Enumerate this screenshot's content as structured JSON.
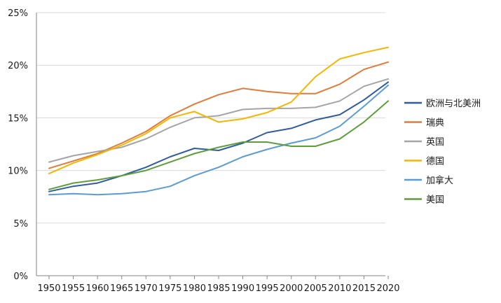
{
  "chart_data": {
    "type": "line",
    "title": "",
    "xlabel": "",
    "ylabel": "",
    "x": [
      1950,
      1955,
      1960,
      1965,
      1970,
      1975,
      1980,
      1985,
      1990,
      1995,
      2000,
      2005,
      2010,
      2015,
      2020
    ],
    "y_ticks": [
      "0%",
      "5%",
      "10%",
      "15%",
      "20%",
      "25%"
    ],
    "ylim": [
      0,
      25
    ],
    "y_unit": "%",
    "grid": true,
    "legend": "right",
    "series": [
      {
        "name": "欧洲与北美洲",
        "color": "#2e5c9e",
        "values": [
          8.0,
          8.5,
          8.8,
          9.5,
          10.3,
          11.3,
          12.1,
          11.9,
          12.6,
          13.6,
          14.0,
          14.8,
          15.3,
          16.7,
          18.4
        ]
      },
      {
        "name": "瑞典",
        "color": "#e07b39",
        "values": [
          10.2,
          10.9,
          11.6,
          12.6,
          13.7,
          15.2,
          16.3,
          17.2,
          17.8,
          17.5,
          17.3,
          17.3,
          18.2,
          19.6,
          20.3
        ]
      },
      {
        "name": "英国",
        "color": "#a5a5a5",
        "values": [
          10.8,
          11.4,
          11.8,
          12.2,
          13.0,
          14.1,
          15.0,
          15.2,
          15.8,
          15.9,
          15.9,
          16.0,
          16.6,
          18.0,
          18.7
        ]
      },
      {
        "name": "德国",
        "color": "#f2b705",
        "values": [
          9.7,
          10.7,
          11.5,
          12.4,
          13.5,
          15.0,
          15.6,
          14.6,
          14.9,
          15.5,
          16.5,
          18.9,
          20.6,
          21.2,
          21.7
        ]
      },
      {
        "name": "加拿大",
        "color": "#5a9bd5",
        "values": [
          7.7,
          7.8,
          7.7,
          7.8,
          8.0,
          8.5,
          9.5,
          10.3,
          11.3,
          12.0,
          12.6,
          13.1,
          14.2,
          16.1,
          18.1
        ]
      },
      {
        "name": "美国",
        "color": "#5e9e3a",
        "values": [
          8.2,
          8.8,
          9.1,
          9.5,
          10.0,
          10.8,
          11.6,
          12.2,
          12.7,
          12.7,
          12.3,
          12.3,
          13.0,
          14.6,
          16.6
        ]
      }
    ]
  }
}
